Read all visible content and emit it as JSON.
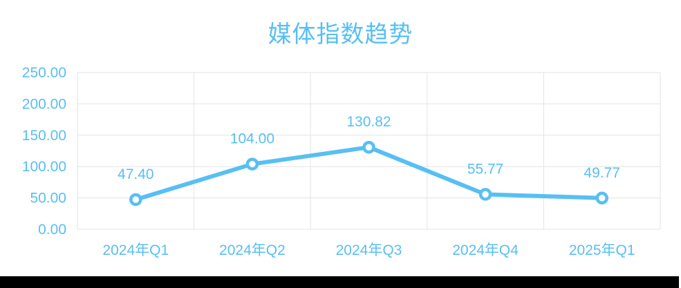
{
  "title": "媒体指数趋势",
  "colors": {
    "accent": "#57BFF3",
    "grid": "#E3E3E3",
    "marker_fill": "#FFFFFF",
    "background": "#FFFFFF",
    "bottom_bar": "#000000"
  },
  "chart_data": {
    "type": "line",
    "title": "媒体指数趋势",
    "categories": [
      "2024年Q1",
      "2024年Q2",
      "2024年Q3",
      "2024年Q4",
      "2025年Q1"
    ],
    "values": [
      47.4,
      104.0,
      130.82,
      55.77,
      49.77
    ],
    "value_labels": [
      "47.40",
      "104.00",
      "130.82",
      "55.77",
      "49.77"
    ],
    "xlabel": "",
    "ylabel": "",
    "ylim": [
      0,
      250
    ],
    "ytick_step": 50,
    "ytick_labels": [
      "0.00",
      "50.00",
      "100.00",
      "150.00",
      "200.00",
      "250.00"
    ],
    "grid": true,
    "legend_position": "none",
    "line_color": "#57BFF3",
    "marker": "circle-open"
  }
}
